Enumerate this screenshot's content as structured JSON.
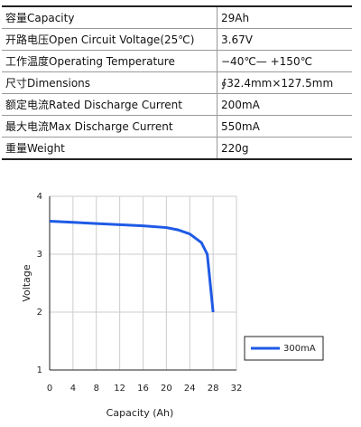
{
  "table": {
    "rows": [
      [
        "容量Capacity",
        "29Ah"
      ],
      [
        "开路电压Open Circuit Voltage(25℃)",
        "3.67V"
      ],
      [
        "工作温度Operating Temperature",
        "−40℃— +150℃"
      ],
      [
        "尺寸Dimensions",
        "∮32.4mm×127.5mm"
      ],
      [
        "额定电流Rated Discharge Current",
        "200mA"
      ],
      [
        "最大电流Max Discharge Current",
        "550mA"
      ],
      [
        "重量Weight",
        "220g"
      ]
    ]
  },
  "chart_data": {
    "type": "line",
    "x_label": "Capacity (Ah)",
    "y_label": "Voltage",
    "x": [
      0,
      4,
      8,
      12,
      16,
      20,
      22,
      24,
      26,
      27,
      27.5,
      28
    ],
    "series": [
      {
        "name": "300mA",
        "color": "#1f5ae6",
        "values": [
          3.57,
          3.55,
          3.53,
          3.51,
          3.49,
          3.46,
          3.42,
          3.35,
          3.2,
          3.0,
          2.5,
          2.0
        ]
      }
    ],
    "xlim": [
      0,
      32
    ],
    "xticks": [
      0,
      4,
      8,
      12,
      16,
      20,
      24,
      28,
      32
    ],
    "ylim": [
      1,
      4
    ],
    "yticks": [
      1,
      2,
      3,
      4
    ],
    "grid": true
  }
}
